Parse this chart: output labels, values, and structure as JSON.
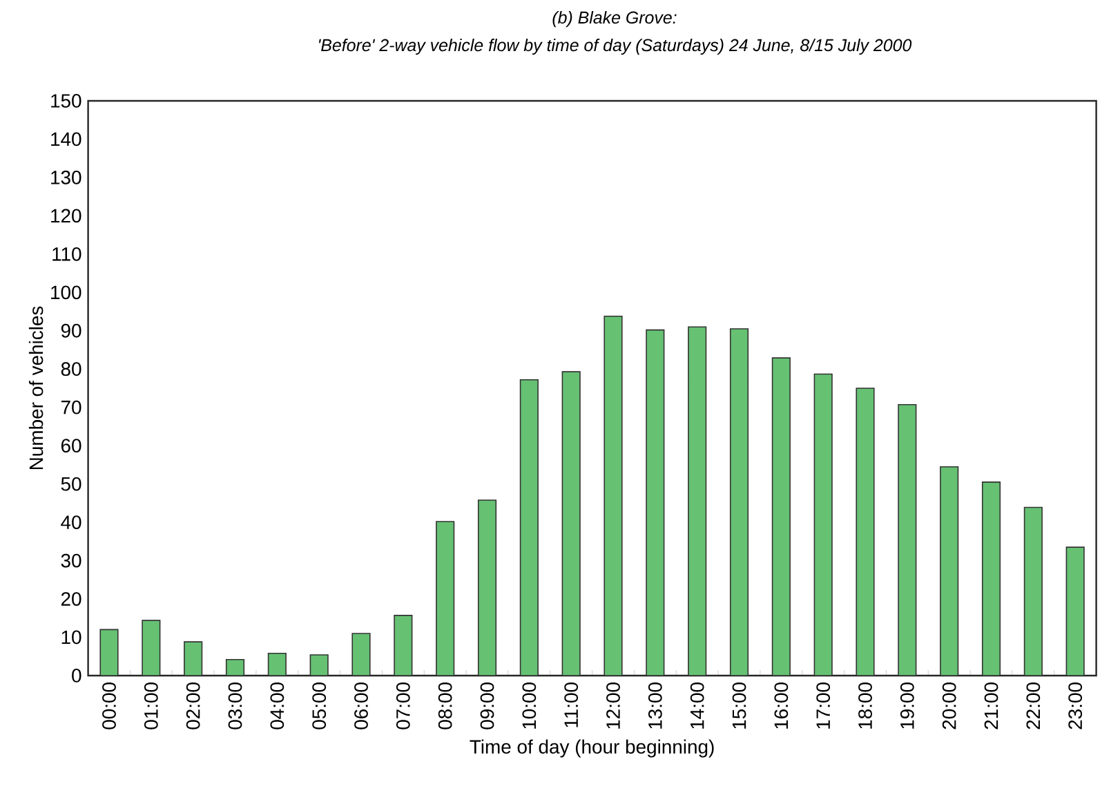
{
  "chart_data": {
    "type": "bar",
    "title": "(b) Blake Grove:",
    "subtitle": "'Before' 2-way vehicle flow by time of day (Saturdays) 24 June, 8/15 July 2000",
    "xlabel": "Time of day (hour beginning)",
    "ylabel": "Number of vehicles",
    "categories": [
      "00:00",
      "01:00",
      "02:00",
      "03:00",
      "04:00",
      "05:00",
      "06:00",
      "07:00",
      "08:00",
      "09:00",
      "10:00",
      "11:00",
      "12:00",
      "13:00",
      "14:00",
      "15:00",
      "16:00",
      "17:00",
      "18:00",
      "19:00",
      "20:00",
      "21:00",
      "22:00",
      "23:00"
    ],
    "values": [
      12,
      14.4,
      8.8,
      4.2,
      5.8,
      5.4,
      11,
      15.7,
      40.2,
      45.8,
      77.2,
      79.3,
      93.8,
      90.2,
      91,
      90.5,
      82.9,
      78.7,
      75,
      70.7,
      54.5,
      50.5,
      43.9,
      33.5
    ],
    "color": "#66c173",
    "ylim": [
      0,
      150
    ],
    "yticks": [
      0,
      10,
      20,
      30,
      40,
      50,
      60,
      70,
      80,
      90,
      100,
      110,
      120,
      130,
      140,
      150
    ]
  }
}
